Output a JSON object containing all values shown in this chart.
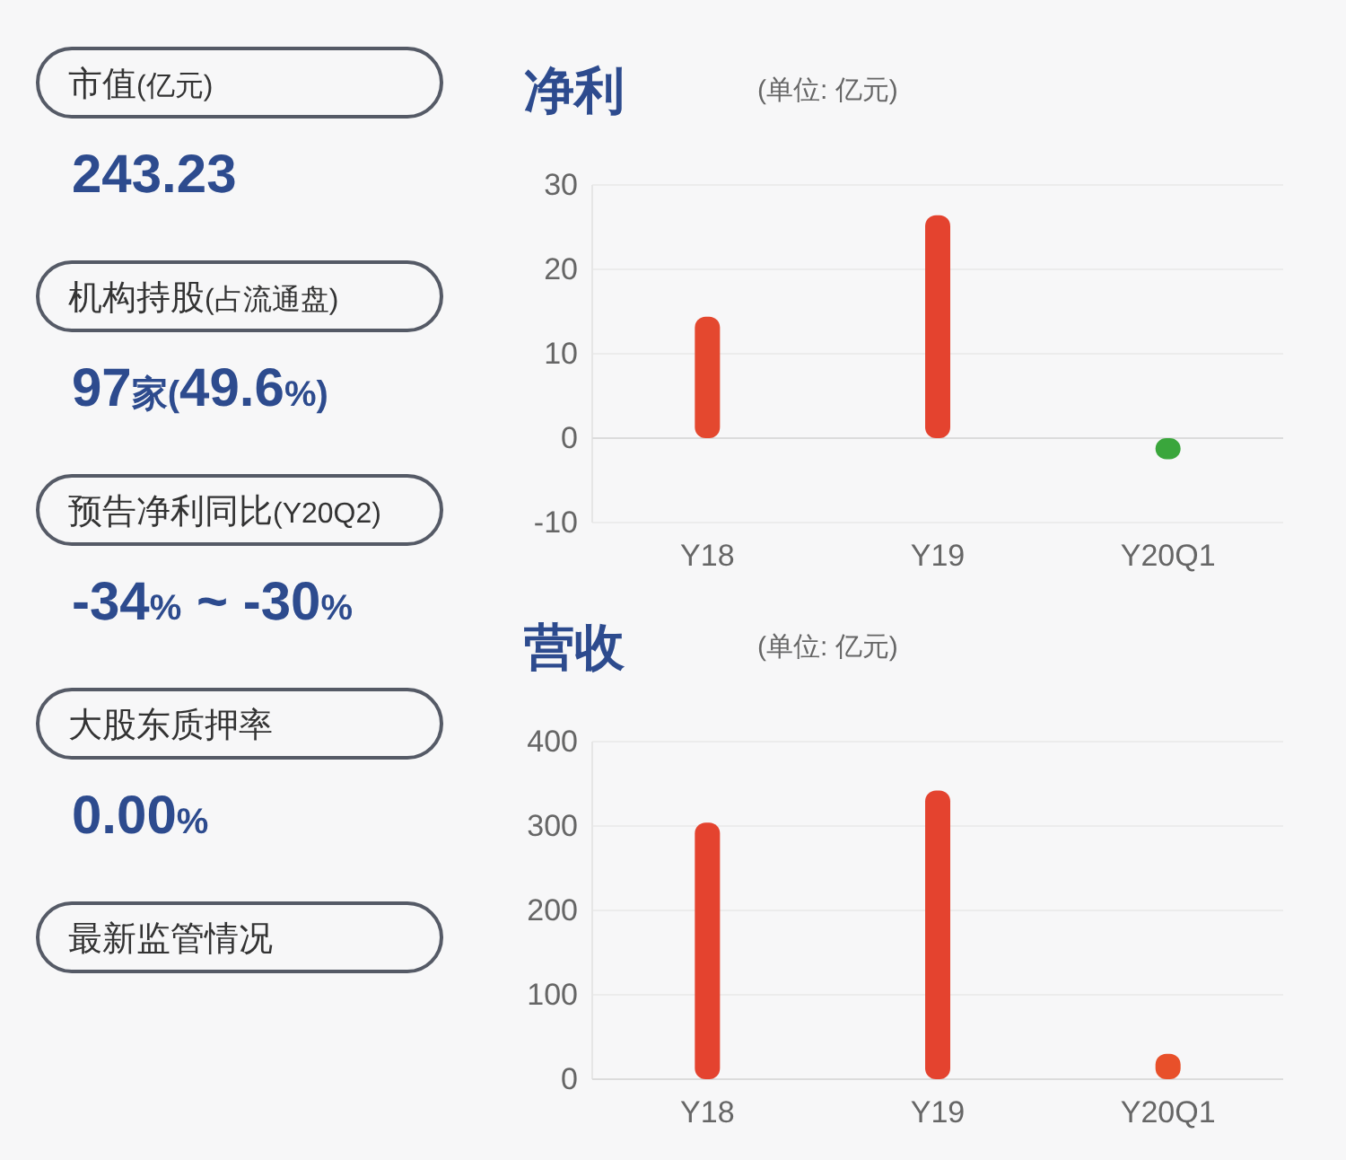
{
  "chart_data": [
    {
      "type": "other",
      "annotations": [
        "市值(亿元)",
        "243.23",
        "机构持股(占流通盘)",
        "97家(49.6%)",
        "预告净利同比(Y20Q2)",
        "-34% ~ -30%",
        "大股东质押率",
        "0.00%",
        "最新监管情况"
      ]
    },
    {
      "type": "bar",
      "title": "净利",
      "subtitle": "(单位: 亿元)",
      "categories": [
        "Y18",
        "Y19",
        "Y20Q1"
      ],
      "values": [
        14.4,
        26.4,
        -2.5
      ],
      "colors": [
        "#e4482f",
        "#e4432f",
        "#3aa63c"
      ],
      "ylim": [
        -10,
        30
      ],
      "yticks": [
        -10,
        0,
        10,
        20,
        30
      ],
      "grid": "y"
    },
    {
      "type": "bar",
      "title": "营收",
      "subtitle": "(单位: 亿元)",
      "categories": [
        "Y18",
        "Y19",
        "Y20Q1"
      ],
      "values": [
        304,
        342,
        30
      ],
      "colors": [
        "#e4432f",
        "#e4432f",
        "#e8502a"
      ],
      "ylim": [
        0,
        400
      ],
      "yticks": [
        0,
        100,
        200,
        300,
        400
      ],
      "grid": "y"
    }
  ]
}
